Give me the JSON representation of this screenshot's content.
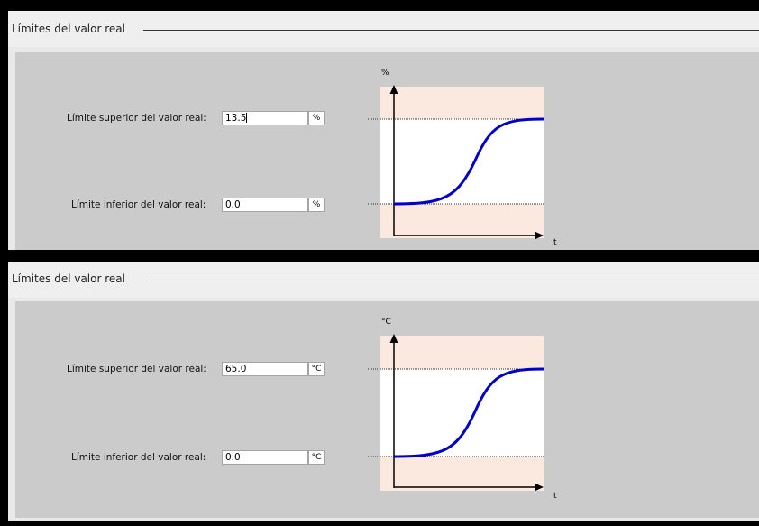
{
  "panels": [
    {
      "title": "Límites del valor real",
      "upper_label": "Límite superior del valor real:",
      "upper_value": "13.5",
      "upper_unit": "%",
      "lower_label": "Límite inferior del valor real:",
      "lower_value": "0.0",
      "lower_unit": "%",
      "y_axis_label": "%",
      "x_axis_label": "t"
    },
    {
      "title": "Límites del valor real",
      "upper_label": "Límite superior del valor real:",
      "upper_value": "65.0",
      "upper_unit": "°C",
      "lower_label": "Límite inferior del valor real:",
      "lower_value": "0.0",
      "lower_unit": "°C",
      "y_axis_label": "°C",
      "x_axis_label": "t"
    }
  ],
  "colors": {
    "limit_zone": "#fbe9e0",
    "curve": "#0000cc",
    "panel_body": "#cbcbcb",
    "panel_header": "#efefef"
  }
}
